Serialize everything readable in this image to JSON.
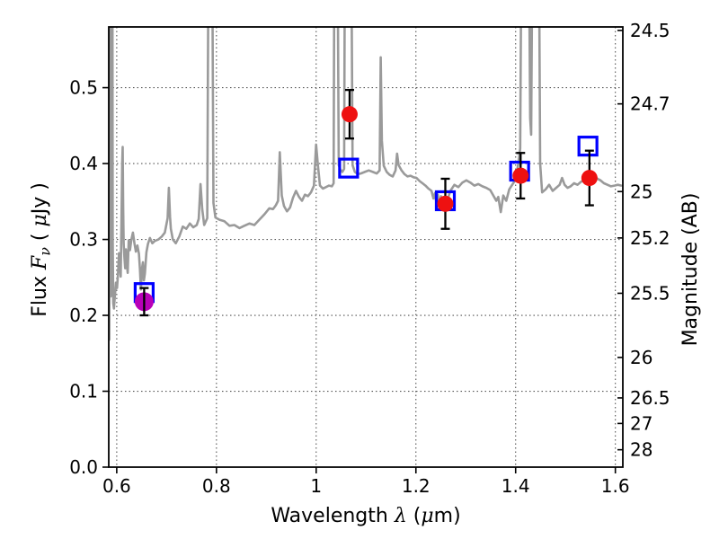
{
  "chart_data": {
    "type": "line+scatter",
    "title": "",
    "xlabel": "Wavelength λ (μm)",
    "xlabel_parts": [
      {
        "t": "Wavelength  "
      },
      {
        "t": "λ",
        "italic": true
      },
      {
        "t": " ("
      },
      {
        "t": "μ",
        "italic": true
      },
      {
        "t": "m)"
      }
    ],
    "ylabel_left": "Flux Fν ( μJy )",
    "ylabel_left_parts": [
      {
        "t": "Flux  "
      },
      {
        "t": "F",
        "italic": true
      },
      {
        "t": "ν",
        "italic": true,
        "sub": true
      },
      {
        "t": "  ( "
      },
      {
        "t": "μ",
        "italic": true
      },
      {
        "t": "Jy )"
      }
    ],
    "ylabel_right": "Magnitude (AB)",
    "xlim": [
      0.584,
      1.615
    ],
    "ylim": [
      0.0,
      0.58
    ],
    "grid": "dotted",
    "legend": "none",
    "ab_zeropoint_ujy": 23.9,
    "x_ticks": [
      {
        "v": 0.6,
        "label": "0.6"
      },
      {
        "v": 0.8,
        "label": "0.8"
      },
      {
        "v": 1.0,
        "label": "1"
      },
      {
        "v": 1.2,
        "label": "1.2"
      },
      {
        "v": 1.4,
        "label": "1.4"
      },
      {
        "v": 1.6,
        "label": "1.6"
      }
    ],
    "y_ticks_left": [
      {
        "v": 0.0,
        "label": "0.0"
      },
      {
        "v": 0.1,
        "label": "0.1"
      },
      {
        "v": 0.2,
        "label": "0.2"
      },
      {
        "v": 0.3,
        "label": "0.3"
      },
      {
        "v": 0.4,
        "label": "0.4"
      },
      {
        "v": 0.5,
        "label": "0.5"
      }
    ],
    "y_ticks_right_mag": [
      {
        "mag": 24.5,
        "label": "24.5"
      },
      {
        "mag": 24.7,
        "label": "24.7"
      },
      {
        "mag": 25.0,
        "label": "25"
      },
      {
        "mag": 25.2,
        "label": "25.2"
      },
      {
        "mag": 25.5,
        "label": "25.5"
      },
      {
        "mag": 26.0,
        "label": "26"
      },
      {
        "mag": 26.5,
        "label": "26.5"
      },
      {
        "mag": 27.0,
        "label": "27"
      },
      {
        "mag": 28.0,
        "label": "28"
      }
    ],
    "colors": {
      "spectrum": "#9a9a9a",
      "square": "#0000ff",
      "errorbar": "#000000",
      "red_point": "#ee1111",
      "magenta_point": "#b800b8"
    },
    "photometry_circles": [
      {
        "lam": 0.655,
        "flux": 0.218,
        "err": 0.018,
        "color": "#b800b8",
        "r": 10.5,
        "bar_on_top": true
      },
      {
        "lam": 1.067,
        "flux": 0.465,
        "err": 0.032,
        "color": "#ee1111",
        "r": 9,
        "bar_on_top": false
      },
      {
        "lam": 1.259,
        "flux": 0.347,
        "err": 0.033,
        "color": "#ee1111",
        "r": 9,
        "bar_on_top": false
      },
      {
        "lam": 1.41,
        "flux": 0.384,
        "err": 0.03,
        "color": "#ee1111",
        "r": 9,
        "bar_on_top": false
      },
      {
        "lam": 1.548,
        "flux": 0.381,
        "err": 0.036,
        "color": "#ee1111",
        "r": 9,
        "bar_on_top": false
      }
    ],
    "model_squares": [
      {
        "lam": 0.655,
        "flux": 0.23
      },
      {
        "lam": 1.065,
        "flux": 0.394
      },
      {
        "lam": 1.259,
        "flux": 0.351
      },
      {
        "lam": 1.408,
        "flux": 0.39
      },
      {
        "lam": 1.545,
        "flux": 0.423
      }
    ],
    "spectrum": [
      [
        0.584,
        0.186
      ],
      [
        0.5845,
        0.175
      ],
      [
        0.585,
        0.168
      ],
      [
        0.5854,
        0.3
      ],
      [
        0.5858,
        0.64
      ],
      [
        0.5876,
        0.64
      ],
      [
        0.5882,
        0.225
      ],
      [
        0.589,
        0.26
      ],
      [
        0.5896,
        0.64
      ],
      [
        0.5914,
        0.64
      ],
      [
        0.592,
        0.3
      ],
      [
        0.593,
        0.216
      ],
      [
        0.5945,
        0.209
      ],
      [
        0.5965,
        0.227
      ],
      [
        0.5985,
        0.243
      ],
      [
        0.6005,
        0.236
      ],
      [
        0.6025,
        0.254
      ],
      [
        0.6045,
        0.282
      ],
      [
        0.6065,
        0.267
      ],
      [
        0.608,
        0.251
      ],
      [
        0.6095,
        0.318
      ],
      [
        0.611,
        0.402
      ],
      [
        0.612,
        0.422
      ],
      [
        0.613,
        0.338
      ],
      [
        0.614,
        0.294
      ],
      [
        0.6155,
        0.275
      ],
      [
        0.617,
        0.262
      ],
      [
        0.6185,
        0.287
      ],
      [
        0.62,
        0.269
      ],
      [
        0.622,
        0.256
      ],
      [
        0.624,
        0.299
      ],
      [
        0.6265,
        0.286
      ],
      [
        0.6295,
        0.3
      ],
      [
        0.6325,
        0.309
      ],
      [
        0.6355,
        0.295
      ],
      [
        0.6385,
        0.284
      ],
      [
        0.6415,
        0.292
      ],
      [
        0.6445,
        0.281
      ],
      [
        0.6465,
        0.261
      ],
      [
        0.6485,
        0.234
      ],
      [
        0.6505,
        0.261
      ],
      [
        0.6525,
        0.27
      ],
      [
        0.6545,
        0.246
      ],
      [
        0.6565,
        0.255
      ],
      [
        0.6595,
        0.283
      ],
      [
        0.6625,
        0.294
      ],
      [
        0.6665,
        0.302
      ],
      [
        0.6715,
        0.295
      ],
      [
        0.6765,
        0.298
      ],
      [
        0.6835,
        0.3
      ],
      [
        0.6905,
        0.304
      ],
      [
        0.6965,
        0.309
      ],
      [
        0.702,
        0.328
      ],
      [
        0.7045,
        0.368
      ],
      [
        0.707,
        0.33
      ],
      [
        0.7085,
        0.314
      ],
      [
        0.7125,
        0.3
      ],
      [
        0.7185,
        0.295
      ],
      [
        0.7255,
        0.304
      ],
      [
        0.7325,
        0.317
      ],
      [
        0.7395,
        0.314
      ],
      [
        0.7465,
        0.321
      ],
      [
        0.7535,
        0.316
      ],
      [
        0.7605,
        0.319
      ],
      [
        0.7645,
        0.327
      ],
      [
        0.768,
        0.373
      ],
      [
        0.7715,
        0.34
      ],
      [
        0.7755,
        0.319
      ],
      [
        0.7815,
        0.328
      ],
      [
        0.7838,
        0.64
      ],
      [
        0.7918,
        0.64
      ],
      [
        0.794,
        0.348
      ],
      [
        0.798,
        0.329
      ],
      [
        0.806,
        0.326
      ],
      [
        0.816,
        0.324
      ],
      [
        0.826,
        0.318
      ],
      [
        0.836,
        0.319
      ],
      [
        0.846,
        0.315
      ],
      [
        0.856,
        0.318
      ],
      [
        0.866,
        0.321
      ],
      [
        0.876,
        0.319
      ],
      [
        0.886,
        0.326
      ],
      [
        0.896,
        0.333
      ],
      [
        0.906,
        0.341
      ],
      [
        0.9135,
        0.34
      ],
      [
        0.919,
        0.345
      ],
      [
        0.9235,
        0.351
      ],
      [
        0.927,
        0.415
      ],
      [
        0.931,
        0.358
      ],
      [
        0.9355,
        0.344
      ],
      [
        0.9415,
        0.337
      ],
      [
        0.9475,
        0.342
      ],
      [
        0.9535,
        0.355
      ],
      [
        0.9595,
        0.364
      ],
      [
        0.9655,
        0.356
      ],
      [
        0.9715,
        0.351
      ],
      [
        0.9775,
        0.359
      ],
      [
        0.9835,
        0.357
      ],
      [
        0.9895,
        0.362
      ],
      [
        0.9955,
        0.371
      ],
      [
        0.9998,
        0.425
      ],
      [
        1.0035,
        0.398
      ],
      [
        1.0075,
        0.371
      ],
      [
        1.0135,
        0.367
      ],
      [
        1.0195,
        0.369
      ],
      [
        1.0255,
        0.371
      ],
      [
        1.0315,
        0.37
      ],
      [
        1.035,
        0.374
      ],
      [
        1.0362,
        0.64
      ],
      [
        1.0432,
        0.64
      ],
      [
        1.0452,
        0.398
      ],
      [
        1.0485,
        0.392
      ],
      [
        1.0525,
        0.389
      ],
      [
        1.056,
        0.393
      ],
      [
        1.0574,
        0.64
      ],
      [
        1.0708,
        0.64
      ],
      [
        1.073,
        0.398
      ],
      [
        1.0775,
        0.389
      ],
      [
        1.0835,
        0.386
      ],
      [
        1.0895,
        0.387
      ],
      [
        1.0975,
        0.389
      ],
      [
        1.1055,
        0.391
      ],
      [
        1.1135,
        0.389
      ],
      [
        1.1215,
        0.387
      ],
      [
        1.1272,
        0.391
      ],
      [
        1.1295,
        0.54
      ],
      [
        1.1318,
        0.43
      ],
      [
        1.1355,
        0.397
      ],
      [
        1.1415,
        0.389
      ],
      [
        1.1475,
        0.385
      ],
      [
        1.1535,
        0.383
      ],
      [
        1.1592,
        0.391
      ],
      [
        1.1622,
        0.413
      ],
      [
        1.1652,
        0.398
      ],
      [
        1.1712,
        0.391
      ],
      [
        1.1772,
        0.386
      ],
      [
        1.1832,
        0.383
      ],
      [
        1.1892,
        0.384
      ],
      [
        1.1952,
        0.382
      ],
      [
        1.2012,
        0.381
      ],
      [
        1.2072,
        0.377
      ],
      [
        1.2132,
        0.374
      ],
      [
        1.2192,
        0.371
      ],
      [
        1.2252,
        0.367
      ],
      [
        1.2312,
        0.364
      ],
      [
        1.2352,
        0.354
      ],
      [
        1.2382,
        0.361
      ],
      [
        1.2412,
        0.348
      ],
      [
        1.2442,
        0.359
      ],
      [
        1.2472,
        0.339
      ],
      [
        1.2502,
        0.357
      ],
      [
        1.2532,
        0.351
      ],
      [
        1.2572,
        0.347
      ],
      [
        1.2632,
        0.352
      ],
      [
        1.2692,
        0.364
      ],
      [
        1.2772,
        0.372
      ],
      [
        1.2852,
        0.369
      ],
      [
        1.2932,
        0.375
      ],
      [
        1.3012,
        0.378
      ],
      [
        1.3092,
        0.375
      ],
      [
        1.3172,
        0.371
      ],
      [
        1.3252,
        0.373
      ],
      [
        1.3332,
        0.37
      ],
      [
        1.3412,
        0.368
      ],
      [
        1.3492,
        0.365
      ],
      [
        1.3552,
        0.358
      ],
      [
        1.3612,
        0.351
      ],
      [
        1.3652,
        0.356
      ],
      [
        1.3702,
        0.336
      ],
      [
        1.3752,
        0.358
      ],
      [
        1.3812,
        0.351
      ],
      [
        1.3872,
        0.366
      ],
      [
        1.3932,
        0.372
      ],
      [
        1.3992,
        0.378
      ],
      [
        1.4052,
        0.399
      ],
      [
        1.4092,
        0.42
      ],
      [
        1.4112,
        0.64
      ],
      [
        1.4272,
        0.64
      ],
      [
        1.4292,
        0.46
      ],
      [
        1.4312,
        0.438
      ],
      [
        1.4332,
        0.64
      ],
      [
        1.4472,
        0.64
      ],
      [
        1.4492,
        0.4
      ],
      [
        1.4532,
        0.362
      ],
      [
        1.4602,
        0.366
      ],
      [
        1.4672,
        0.372
      ],
      [
        1.4742,
        0.364
      ],
      [
        1.4812,
        0.368
      ],
      [
        1.4882,
        0.372
      ],
      [
        1.4932,
        0.381
      ],
      [
        1.4982,
        0.372
      ],
      [
        1.5042,
        0.368
      ],
      [
        1.5102,
        0.37
      ],
      [
        1.5172,
        0.374
      ],
      [
        1.5242,
        0.372
      ],
      [
        1.5312,
        0.376
      ],
      [
        1.5382,
        0.378
      ],
      [
        1.5452,
        0.376
      ],
      [
        1.5522,
        0.38
      ],
      [
        1.5582,
        0.384
      ],
      [
        1.5642,
        0.38
      ],
      [
        1.5702,
        0.378
      ],
      [
        1.5772,
        0.374
      ],
      [
        1.5842,
        0.372
      ],
      [
        1.5912,
        0.37
      ],
      [
        1.5982,
        0.371
      ],
      [
        1.605,
        0.372
      ],
      [
        1.612,
        0.371
      ]
    ]
  }
}
